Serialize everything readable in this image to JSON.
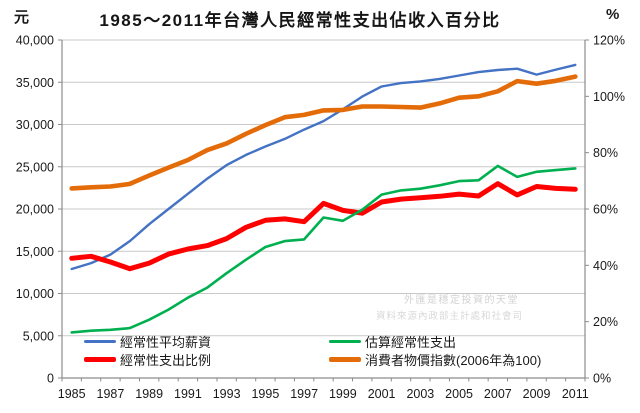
{
  "watermark": {
    "line1": "外匯是穩定投資的天堂",
    "line2": "資料來源內政部主計處和社會司"
  },
  "legend": {
    "items": [
      {
        "label": "經常性平均薪資",
        "color": "#4472C4",
        "swatch_thickness": 3
      },
      {
        "label": "經常性支出比例",
        "color": "#FF0000",
        "swatch_thickness": 5
      },
      {
        "label": "估算經常性支出",
        "color": "#00B050",
        "swatch_thickness": 3
      },
      {
        "label": "消費者物價指數(2006年為100)",
        "color": "#E36C09",
        "swatch_thickness": 5
      }
    ]
  },
  "chart_data": {
    "type": "line",
    "title": "1985～2011年台灣人民經常性支出佔收入百分比",
    "grid": "horizontal",
    "legend_position": "bottom-inside",
    "left_axis": {
      "unit": "元",
      "min": 0,
      "max": 40000,
      "tick_values": [
        0,
        5000,
        10000,
        15000,
        20000,
        25000,
        30000,
        35000,
        40000
      ],
      "tick_labels": [
        "0",
        "5,000",
        "10,000",
        "15,000",
        "20,000",
        "25,000",
        "30,000",
        "35,000",
        "40,000"
      ]
    },
    "right_axis": {
      "unit": "%",
      "min": 0,
      "max": 120,
      "tick_values": [
        0,
        20,
        40,
        60,
        80,
        100,
        120
      ],
      "tick_labels": [
        "0%",
        "20%",
        "40%",
        "60%",
        "80%",
        "100%",
        "120%"
      ]
    },
    "x": [
      1985,
      1986,
      1987,
      1988,
      1989,
      1990,
      1991,
      1992,
      1993,
      1994,
      1995,
      1996,
      1997,
      1998,
      1999,
      2000,
      2001,
      2002,
      2003,
      2004,
      2005,
      2006,
      2007,
      2008,
      2009,
      2010,
      2011
    ],
    "x_tick_labels": [
      "1985",
      "1987",
      "1989",
      "1991",
      "1993",
      "1995",
      "1997",
      "1999",
      "2001",
      "2003",
      "2005",
      "2007",
      "2009",
      "2011"
    ],
    "series": [
      {
        "name": "經常性平均薪資",
        "axis": "left",
        "color": "#4472C4",
        "width": 2.4,
        "values": [
          12900,
          13600,
          14600,
          16200,
          18200,
          20000,
          21800,
          23600,
          25200,
          26400,
          27400,
          28300,
          29400,
          30400,
          31800,
          33300,
          34500,
          34900,
          35100,
          35400,
          35800,
          36200,
          36450,
          36600,
          35900,
          36500,
          37050
        ]
      },
      {
        "name": "經常性支出比例",
        "axis": "right",
        "color": "#FF0000",
        "width": 5,
        "values": [
          42.5,
          43.2,
          41.2,
          38.8,
          40.8,
          44,
          45.8,
          47,
          49.5,
          53.5,
          56,
          56.5,
          55.5,
          62,
          59.5,
          58.5,
          62.5,
          63.5,
          64,
          64.5,
          65.3,
          64.6,
          69,
          65,
          68,
          67.3,
          67
        ]
      },
      {
        "name": "估算經常性支出",
        "axis": "left",
        "color": "#00B050",
        "width": 2.6,
        "values": [
          5400,
          5600,
          5700,
          5900,
          6900,
          8100,
          9500,
          10700,
          12400,
          14000,
          15500,
          16200,
          16400,
          19000,
          18600,
          19900,
          21700,
          22200,
          22400,
          22800,
          23300,
          23400,
          25100,
          23800,
          24400,
          24600,
          24800
        ]
      },
      {
        "name": "消費者物價指數(2006年為100)",
        "axis": "right",
        "color": "#E36C09",
        "width": 4.6,
        "values": [
          67.3,
          67.7,
          68,
          68.9,
          71.9,
          74.7,
          77.4,
          80.9,
          83.3,
          86.7,
          89.8,
          92.6,
          93.4,
          95,
          95.2,
          96.4,
          96.4,
          96.2,
          96,
          97.5,
          99.5,
          100,
          101.8,
          105.4,
          104.5,
          105.5,
          107
        ]
      }
    ]
  }
}
